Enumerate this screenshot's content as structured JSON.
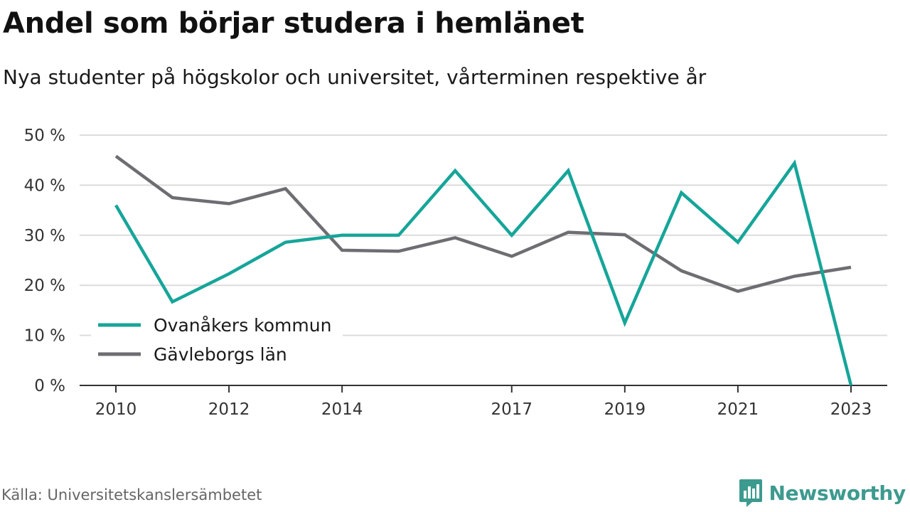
{
  "header": {
    "title": "Andel som börjar studera i hemlänet",
    "subtitle": "Nya studenter på högskolor och universitet, vårterminen respektive år"
  },
  "footer": {
    "source": "Källa: Universitetskanslersämbetet",
    "brand": "Newsworthy",
    "brand_icon": "bar-chart-icon",
    "brand_color": "#3d9a8f"
  },
  "chart_data": {
    "type": "line",
    "x": [
      2010,
      2011,
      2012,
      2013,
      2014,
      2015,
      2016,
      2017,
      2018,
      2019,
      2020,
      2021,
      2022,
      2023
    ],
    "x_tick_labels": [
      "2010",
      "2012",
      "2014",
      "2017",
      "2019",
      "2021",
      "2023"
    ],
    "y_tick_labels": [
      "0 %",
      "10 %",
      "20 %",
      "30 %",
      "40 %",
      "50 %"
    ],
    "ylim": [
      0,
      50
    ],
    "grid": true,
    "legend_position": "bottom-left",
    "series": [
      {
        "name": "Ovanåkers kommun",
        "color": "#16a599",
        "values": [
          36.0,
          16.7,
          22.3,
          28.6,
          30.0,
          30.0,
          42.9,
          30.0,
          42.9,
          12.5,
          38.5,
          28.6,
          44.4,
          0.0
        ]
      },
      {
        "name": "Gävleborgs län",
        "color": "#6e6d72",
        "values": [
          45.8,
          37.5,
          36.3,
          39.3,
          27.0,
          26.8,
          29.5,
          25.8,
          30.6,
          30.1,
          22.9,
          18.8,
          21.8,
          23.6
        ]
      }
    ]
  }
}
